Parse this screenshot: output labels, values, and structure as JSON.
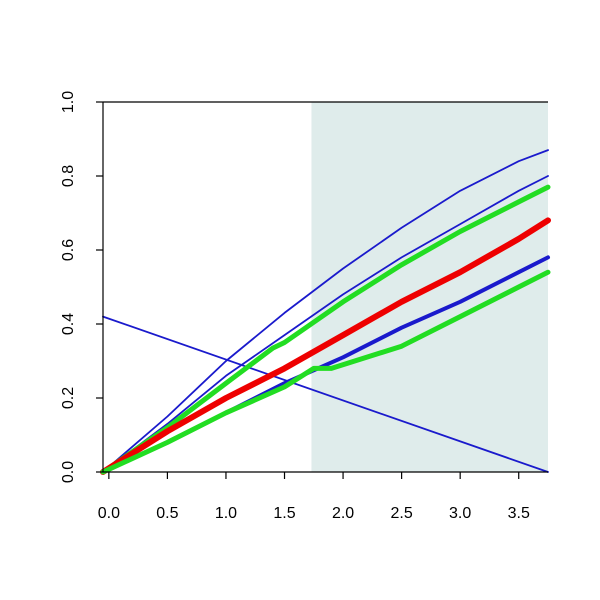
{
  "chart_data": {
    "type": "line",
    "title": "",
    "xlabel": "",
    "ylabel": "",
    "xlim": [
      -0.05,
      3.75
    ],
    "ylim": [
      0,
      1
    ],
    "x_ticks": [
      0.0,
      0.5,
      1.0,
      1.5,
      2.0,
      2.5,
      3.0,
      3.5
    ],
    "x_tick_labels": [
      "0.0",
      "0.5",
      "1.0",
      "1.5",
      "2.0",
      "2.5",
      "3.0",
      "3.5"
    ],
    "y_ticks": [
      0.0,
      0.2,
      0.4,
      0.6,
      0.8,
      1.0
    ],
    "y_tick_labels": [
      "0.0",
      "0.2",
      "0.4",
      "0.6",
      "0.8",
      "1.0"
    ],
    "shaded_region": {
      "x_start": 1.73,
      "x_end": 3.75,
      "color": "#dfeceb"
    },
    "grid": false,
    "legend": false,
    "series": [
      {
        "color": "#1a1acc",
        "width": 1.8,
        "points": [
          [
            -0.05,
            0.42
          ],
          [
            3.75,
            0.0
          ]
        ]
      },
      {
        "color": "#1a1acc",
        "width": 1.8,
        "points": [
          [
            -0.05,
            0.0
          ],
          [
            0.5,
            0.15
          ],
          [
            1.0,
            0.3
          ],
          [
            1.5,
            0.43
          ],
          [
            2.0,
            0.55
          ],
          [
            2.5,
            0.66
          ],
          [
            3.0,
            0.76
          ],
          [
            3.5,
            0.84
          ],
          [
            3.75,
            0.87
          ]
        ]
      },
      {
        "color": "#1a1acc",
        "width": 1.8,
        "points": [
          [
            -0.05,
            0.0
          ],
          [
            0.5,
            0.13
          ],
          [
            1.0,
            0.26
          ],
          [
            1.5,
            0.37
          ],
          [
            2.0,
            0.48
          ],
          [
            2.5,
            0.58
          ],
          [
            3.0,
            0.67
          ],
          [
            3.5,
            0.76
          ],
          [
            3.75,
            0.8
          ]
        ]
      },
      {
        "color": "#1a1acc",
        "width": 4.0,
        "points": [
          [
            -0.05,
            0.0
          ],
          [
            0.5,
            0.08
          ],
          [
            1.0,
            0.16
          ],
          [
            1.5,
            0.24
          ],
          [
            2.0,
            0.31
          ],
          [
            2.5,
            0.39
          ],
          [
            3.0,
            0.46
          ],
          [
            3.5,
            0.54
          ],
          [
            3.75,
            0.58
          ]
        ]
      },
      {
        "color": "#22dd22",
        "width": 5.0,
        "points": [
          [
            -0.05,
            0.0
          ],
          [
            0.5,
            0.12
          ],
          [
            1.0,
            0.24
          ],
          [
            1.4,
            0.335
          ],
          [
            1.5,
            0.35
          ],
          [
            2.0,
            0.46
          ],
          [
            2.5,
            0.56
          ],
          [
            3.0,
            0.65
          ],
          [
            3.5,
            0.73
          ],
          [
            3.75,
            0.77
          ]
        ]
      },
      {
        "color": "#ee0000",
        "width": 6.0,
        "points": [
          [
            -0.05,
            0.0
          ],
          [
            0.5,
            0.11
          ],
          [
            1.0,
            0.2
          ],
          [
            1.5,
            0.28
          ],
          [
            2.0,
            0.37
          ],
          [
            2.5,
            0.46
          ],
          [
            3.0,
            0.54
          ],
          [
            3.5,
            0.63
          ],
          [
            3.75,
            0.68
          ]
        ]
      },
      {
        "color": "#22dd22",
        "width": 5.0,
        "points": [
          [
            -0.05,
            0.0
          ],
          [
            0.5,
            0.08
          ],
          [
            1.0,
            0.16
          ],
          [
            1.5,
            0.23
          ],
          [
            1.75,
            0.28
          ],
          [
            1.9,
            0.28
          ],
          [
            2.5,
            0.34
          ],
          [
            3.0,
            0.42
          ],
          [
            3.5,
            0.5
          ],
          [
            3.75,
            0.54
          ]
        ]
      }
    ]
  }
}
